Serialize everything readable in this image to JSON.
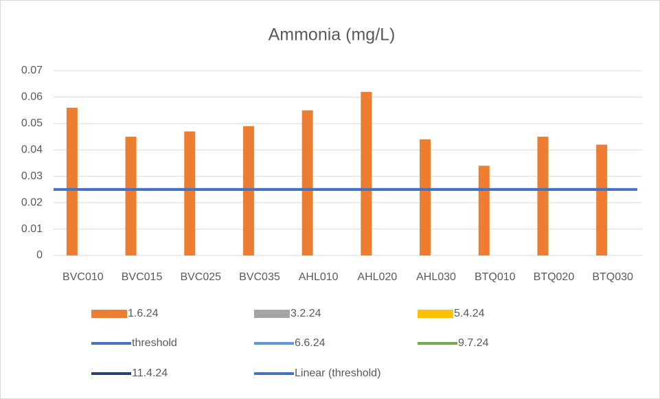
{
  "chart_data": {
    "type": "bar",
    "title": "Ammonia (mg/L)",
    "categories": [
      "BVC010",
      "BVC015",
      "BVC025",
      "BVC035",
      "AHL010",
      "AHL020",
      "AHL030",
      "BTQ010",
      "BTQ020",
      "BTQ030"
    ],
    "series": [
      {
        "name": "1.6.24",
        "kind": "bar",
        "color": "#ed7d31",
        "values": [
          0.056,
          0.045,
          0.047,
          0.049,
          0.055,
          0.062,
          0.044,
          0.034,
          0.045,
          0.042
        ]
      },
      {
        "name": "3.2.24",
        "kind": "bar",
        "color": "#a5a5a5",
        "values": [
          null,
          null,
          null,
          null,
          null,
          null,
          null,
          null,
          null,
          null
        ]
      },
      {
        "name": "5.4.24",
        "kind": "bar",
        "color": "#ffc000",
        "values": [
          null,
          null,
          null,
          null,
          null,
          null,
          null,
          null,
          null,
          null
        ]
      },
      {
        "name": "threshold",
        "kind": "line",
        "color": "#4472c4",
        "values": [
          0.025,
          0.025,
          0.025,
          0.025,
          0.025,
          0.025,
          0.025,
          0.025,
          0.025,
          0.025
        ]
      },
      {
        "name": "6.6.24",
        "kind": "line",
        "color": "#5b9bd5",
        "values": [
          null,
          null,
          null,
          null,
          null,
          null,
          null,
          null,
          null,
          null
        ]
      },
      {
        "name": "9.7.24",
        "kind": "line",
        "color": "#70ad47",
        "values": [
          null,
          null,
          null,
          null,
          null,
          null,
          null,
          null,
          null,
          null
        ]
      },
      {
        "name": "11.4.24",
        "kind": "line",
        "color": "#264478",
        "values": [
          null,
          null,
          null,
          null,
          null,
          null,
          null,
          null,
          null,
          null
        ]
      }
    ],
    "trendline": {
      "name": "Linear (threshold)",
      "of": 3,
      "color": "#4472c4"
    },
    "ylim": [
      0,
      0.07
    ],
    "yticks": [
      0,
      0.01,
      0.02,
      0.03,
      0.04,
      0.05,
      0.06,
      0.07
    ],
    "grid": true
  }
}
